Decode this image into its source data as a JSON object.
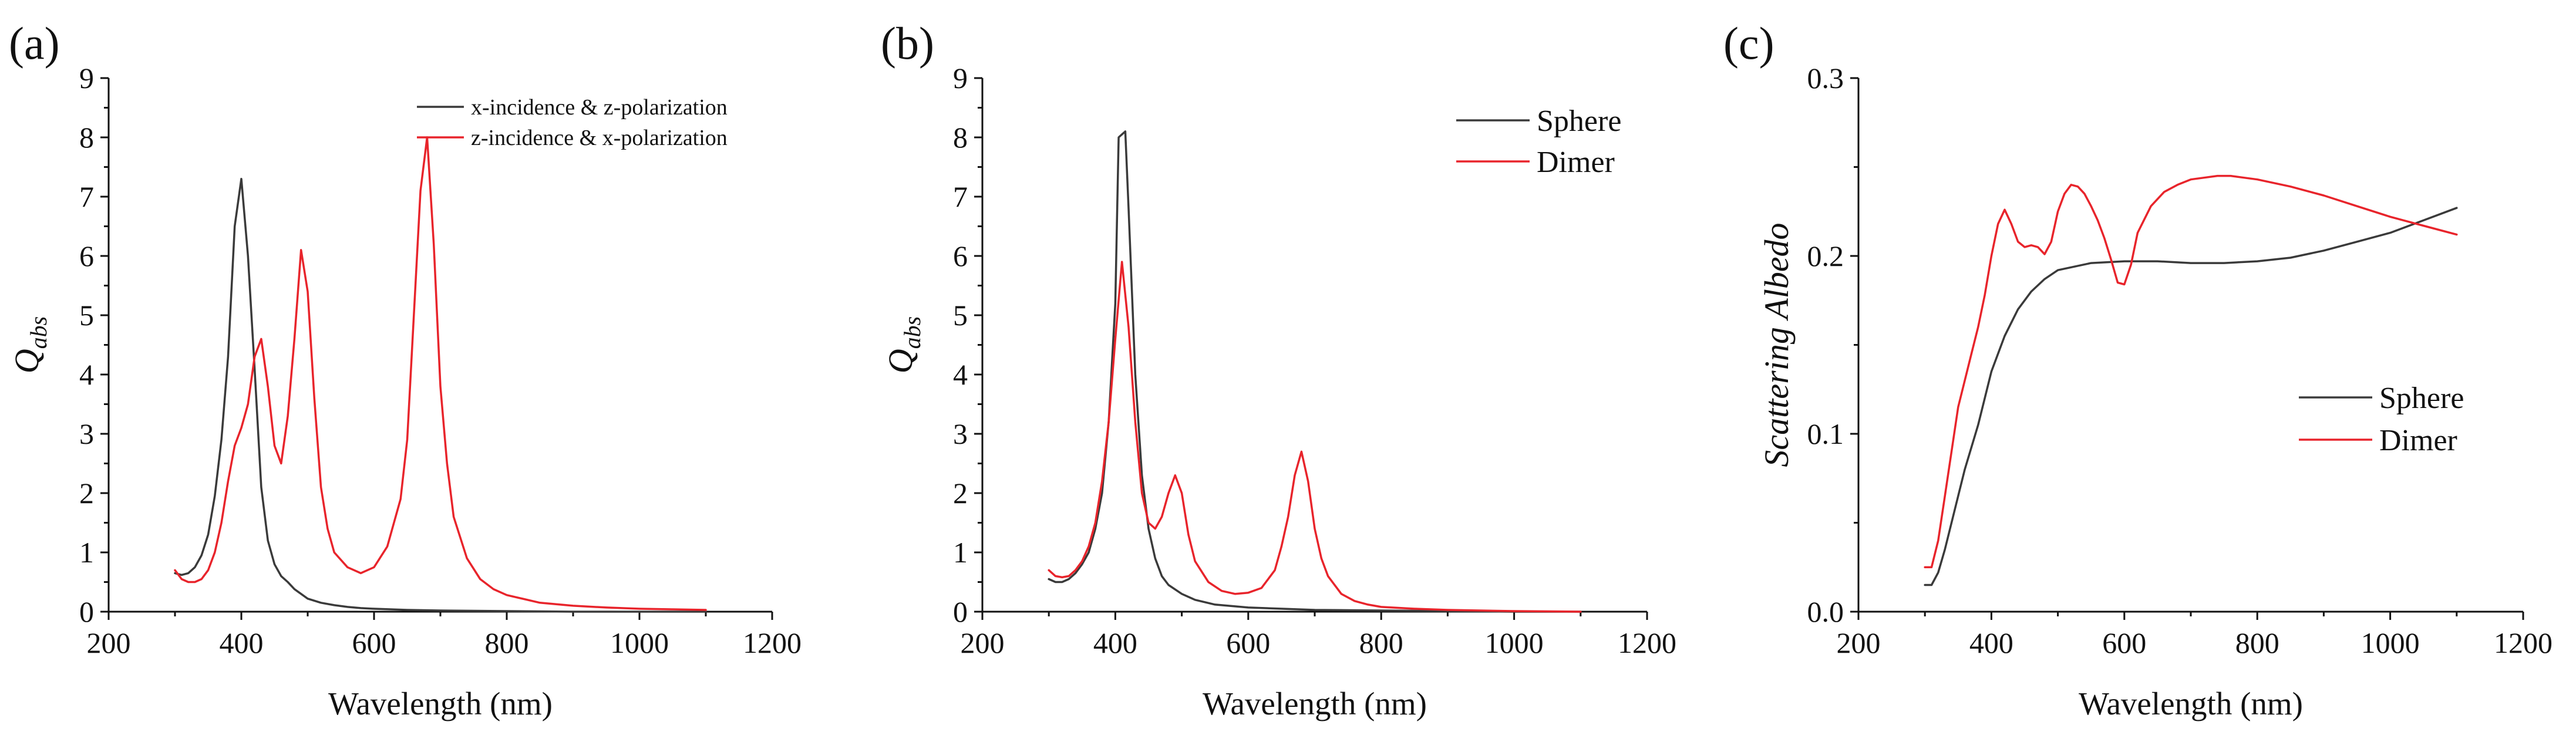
{
  "figure": {
    "panels": [
      "(a)",
      "(b)",
      "(c)"
    ]
  },
  "colors": {
    "black_series": "#3a3a3a",
    "red_series": "#e8242b",
    "axis": "#111111"
  },
  "chart_data": [
    {
      "id": "a",
      "type": "line",
      "panel_label": "(a)",
      "title": "",
      "xlabel": "Wavelength (nm)",
      "ylabel": {
        "main": "Q",
        "sub": "abs"
      },
      "xlim": [
        200,
        1200
      ],
      "ylim": [
        0,
        9
      ],
      "xticks": [
        200,
        400,
        600,
        800,
        1000,
        1200
      ],
      "yticks": [
        0,
        1,
        2,
        3,
        4,
        5,
        6,
        7,
        8,
        9
      ],
      "ytick_decimals": 0,
      "legend_position": "top-right",
      "series": [
        {
          "name": "x-incidence & z-polarization",
          "color": "#3a3a3a",
          "x": [
            300,
            310,
            320,
            330,
            340,
            350,
            360,
            370,
            380,
            390,
            400,
            410,
            420,
            430,
            440,
            450,
            460,
            470,
            480,
            490,
            500,
            520,
            540,
            560,
            580,
            600,
            650,
            700,
            800,
            900,
            1000,
            1100
          ],
          "y": [
            0.65,
            0.62,
            0.65,
            0.75,
            0.95,
            1.3,
            1.95,
            2.9,
            4.3,
            6.5,
            7.3,
            6.0,
            4.1,
            2.1,
            1.2,
            0.8,
            0.6,
            0.5,
            0.38,
            0.3,
            0.22,
            0.15,
            0.11,
            0.08,
            0.06,
            0.05,
            0.03,
            0.02,
            0.01,
            0.0,
            0.0,
            0.0
          ]
        },
        {
          "name": "z-incidence & x-polarization",
          "color": "#e8242b",
          "x": [
            300,
            310,
            320,
            330,
            340,
            350,
            360,
            370,
            380,
            390,
            400,
            410,
            420,
            430,
            440,
            450,
            460,
            470,
            480,
            490,
            500,
            510,
            520,
            530,
            540,
            560,
            580,
            600,
            620,
            640,
            650,
            660,
            670,
            680,
            690,
            700,
            710,
            720,
            740,
            760,
            780,
            800,
            850,
            900,
            950,
            1000,
            1050,
            1100
          ],
          "y": [
            0.7,
            0.55,
            0.5,
            0.5,
            0.55,
            0.7,
            1.0,
            1.5,
            2.2,
            2.8,
            3.1,
            3.5,
            4.3,
            4.6,
            3.8,
            2.8,
            2.5,
            3.3,
            4.6,
            6.1,
            5.4,
            3.6,
            2.1,
            1.4,
            1.0,
            0.75,
            0.65,
            0.75,
            1.1,
            1.9,
            2.9,
            5.0,
            7.1,
            8.0,
            6.2,
            3.8,
            2.5,
            1.6,
            0.9,
            0.55,
            0.38,
            0.28,
            0.15,
            0.1,
            0.07,
            0.05,
            0.04,
            0.03
          ]
        }
      ]
    },
    {
      "id": "b",
      "type": "line",
      "panel_label": "(b)",
      "title": "",
      "xlabel": "Wavelength (nm)",
      "ylabel": {
        "main": "Q",
        "sub": "abs"
      },
      "xlim": [
        200,
        1200
      ],
      "ylim": [
        0,
        9
      ],
      "xticks": [
        200,
        400,
        600,
        800,
        1000,
        1200
      ],
      "yticks": [
        0,
        1,
        2,
        3,
        4,
        5,
        6,
        7,
        8,
        9
      ],
      "ytick_decimals": 0,
      "legend_position": "top-right",
      "series": [
        {
          "name": "Sphere",
          "color": "#3a3a3a",
          "x": [
            300,
            310,
            320,
            330,
            340,
            350,
            360,
            370,
            380,
            390,
            400,
            405,
            410,
            415,
            420,
            430,
            440,
            450,
            460,
            470,
            480,
            500,
            520,
            550,
            600,
            700,
            800,
            900,
            1000,
            1100
          ],
          "y": [
            0.55,
            0.5,
            0.5,
            0.55,
            0.65,
            0.8,
            1.0,
            1.4,
            2.0,
            3.2,
            5.2,
            8.0,
            8.05,
            8.1,
            6.8,
            4.0,
            2.3,
            1.4,
            0.9,
            0.6,
            0.45,
            0.3,
            0.2,
            0.12,
            0.07,
            0.03,
            0.02,
            0.01,
            0.0,
            0.0
          ]
        },
        {
          "name": "Dimer",
          "color": "#e8242b",
          "x": [
            300,
            310,
            320,
            330,
            340,
            350,
            360,
            370,
            380,
            390,
            400,
            410,
            420,
            430,
            440,
            450,
            460,
            470,
            480,
            490,
            500,
            510,
            520,
            540,
            560,
            580,
            600,
            620,
            640,
            650,
            660,
            670,
            680,
            690,
            700,
            710,
            720,
            740,
            760,
            780,
            800,
            850,
            900,
            1000,
            1100
          ],
          "y": [
            0.7,
            0.6,
            0.58,
            0.6,
            0.7,
            0.85,
            1.1,
            1.5,
            2.2,
            3.2,
            4.6,
            5.9,
            4.8,
            3.2,
            2.0,
            1.5,
            1.4,
            1.6,
            2.0,
            2.3,
            2.0,
            1.3,
            0.85,
            0.5,
            0.35,
            0.3,
            0.32,
            0.4,
            0.7,
            1.1,
            1.6,
            2.3,
            2.7,
            2.2,
            1.4,
            0.9,
            0.6,
            0.3,
            0.18,
            0.12,
            0.08,
            0.05,
            0.03,
            0.01,
            0.0
          ]
        }
      ]
    },
    {
      "id": "c",
      "type": "line",
      "panel_label": "(c)",
      "title": "",
      "xlabel": "Wavelength (nm)",
      "ylabel": {
        "main": "Scattering Albedo",
        "sub": ""
      },
      "xlim": [
        200,
        1200
      ],
      "ylim": [
        0,
        0.3
      ],
      "xticks": [
        200,
        400,
        600,
        800,
        1000,
        1200
      ],
      "yticks": [
        0.0,
        0.1,
        0.2,
        0.3
      ],
      "ytick_decimals": 1,
      "legend_position": "center-right",
      "series": [
        {
          "name": "Sphere",
          "color": "#3a3a3a",
          "x": [
            300,
            310,
            320,
            330,
            340,
            350,
            360,
            380,
            400,
            420,
            440,
            460,
            480,
            500,
            550,
            600,
            650,
            700,
            750,
            800,
            850,
            900,
            950,
            1000,
            1050,
            1100
          ],
          "y": [
            0.015,
            0.015,
            0.022,
            0.035,
            0.05,
            0.065,
            0.08,
            0.105,
            0.135,
            0.155,
            0.17,
            0.18,
            0.187,
            0.192,
            0.196,
            0.197,
            0.197,
            0.196,
            0.196,
            0.197,
            0.199,
            0.203,
            0.208,
            0.213,
            0.22,
            0.227
          ]
        },
        {
          "name": "Dimer",
          "color": "#e8242b",
          "x": [
            300,
            310,
            320,
            330,
            340,
            350,
            360,
            370,
            380,
            390,
            400,
            410,
            420,
            430,
            440,
            450,
            460,
            470,
            480,
            490,
            500,
            510,
            520,
            530,
            540,
            550,
            560,
            570,
            580,
            590,
            600,
            610,
            620,
            640,
            660,
            680,
            700,
            720,
            740,
            760,
            780,
            800,
            850,
            900,
            950,
            1000,
            1050,
            1100
          ],
          "y": [
            0.025,
            0.025,
            0.04,
            0.065,
            0.09,
            0.115,
            0.13,
            0.145,
            0.16,
            0.178,
            0.2,
            0.218,
            0.226,
            0.218,
            0.208,
            0.205,
            0.206,
            0.205,
            0.201,
            0.208,
            0.225,
            0.235,
            0.24,
            0.239,
            0.235,
            0.228,
            0.22,
            0.21,
            0.198,
            0.185,
            0.184,
            0.195,
            0.213,
            0.228,
            0.236,
            0.24,
            0.243,
            0.244,
            0.245,
            0.245,
            0.244,
            0.243,
            0.239,
            0.234,
            0.228,
            0.222,
            0.217,
            0.212
          ]
        }
      ]
    }
  ]
}
